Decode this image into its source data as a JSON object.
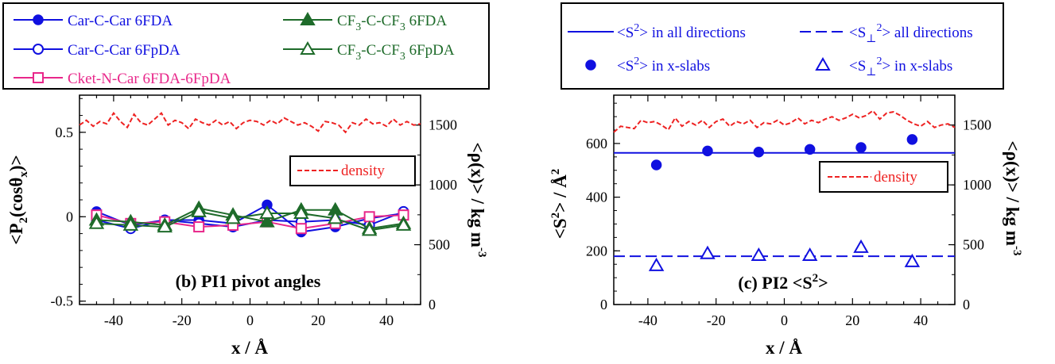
{
  "colors": {
    "blue": "#1010e0",
    "green": "#1e6b2a",
    "magenta": "#e8278a",
    "red": "#ee2222",
    "black": "#000000"
  },
  "chart_data": [
    {
      "type": "line",
      "title": "(b) PI1 pivot angles",
      "xlabel": "x / Å",
      "ylabel": "<P2(cosθx)>",
      "y2label": "<ρ(x)> / kg m-3",
      "xlim": [
        -50,
        50
      ],
      "ylim": [
        -0.52,
        0.72
      ],
      "y2lim": [
        0,
        1750
      ],
      "x_ticks": [
        -40,
        -20,
        0,
        20,
        40
      ],
      "y_ticks": [
        0.5,
        0,
        -0.5
      ],
      "y_tick_labels": [
        "0.5",
        "0",
        "-0.5"
      ],
      "y2_ticks": [
        1500,
        1000,
        500,
        0
      ],
      "x": [
        -45,
        -35,
        -25,
        -15,
        -5,
        5,
        15,
        25,
        35,
        45
      ],
      "series": [
        {
          "name": "Car-C-Car 6FDA",
          "marker": "filled-circle",
          "color": "blue",
          "values": [
            0.03,
            -0.05,
            -0.02,
            -0.02,
            -0.04,
            0.07,
            -0.09,
            -0.06,
            -0.01,
            0.02
          ]
        },
        {
          "name": "Car-C-Car 6FpDA",
          "marker": "open-circle",
          "color": "blue",
          "values": [
            -0.02,
            -0.07,
            -0.02,
            -0.04,
            -0.06,
            -0.02,
            -0.03,
            -0.02,
            -0.05,
            0.03
          ]
        },
        {
          "name": "Cket-N-Car 6FDA-6FpDA",
          "marker": "open-square",
          "color": "magenta",
          "values": [
            0.01,
            -0.04,
            -0.03,
            -0.06,
            -0.05,
            -0.03,
            -0.07,
            -0.04,
            0.0,
            0.01
          ]
        },
        {
          "name": "CF3-C-CF3 6FDA",
          "marker": "filled-triangle",
          "color": "green",
          "values": [
            -0.02,
            -0.03,
            -0.05,
            0.05,
            0.01,
            -0.03,
            0.04,
            0.04,
            -0.07,
            -0.04
          ]
        },
        {
          "name": "CF3-C-CF3 6FpDA",
          "marker": "open-triangle",
          "color": "green",
          "values": [
            -0.04,
            -0.05,
            -0.06,
            0.03,
            -0.01,
            0.02,
            0.02,
            -0.01,
            -0.08,
            -0.05
          ]
        }
      ],
      "density": {
        "name": "density",
        "x": [
          -50,
          -48,
          -46,
          -44,
          -42,
          -40,
          -38,
          -36,
          -34,
          -32,
          -30,
          -28,
          -26,
          -24,
          -22,
          -20,
          -18,
          -16,
          -14,
          -12,
          -10,
          -8,
          -6,
          -4,
          -2,
          0,
          2,
          4,
          6,
          8,
          10,
          12,
          14,
          16,
          18,
          20,
          22,
          24,
          26,
          28,
          30,
          32,
          34,
          36,
          38,
          40,
          42,
          44,
          46,
          48,
          50
        ],
        "values": [
          1500,
          1540,
          1490,
          1530,
          1510,
          1600,
          1530,
          1480,
          1590,
          1520,
          1500,
          1550,
          1600,
          1500,
          1540,
          1520,
          1470,
          1550,
          1520,
          1500,
          1540,
          1500,
          1530,
          1470,
          1520,
          1540,
          1530,
          1500,
          1540,
          1510,
          1560,
          1530,
          1500,
          1520,
          1490,
          1450,
          1530,
          1520,
          1500,
          1440,
          1520,
          1500,
          1550,
          1510,
          1520,
          1490,
          1550,
          1500,
          1530,
          1500,
          1510
        ]
      },
      "legend": [
        {
          "label": "Car-C-Car 6FDA"
        },
        {
          "label": "Car-C-Car 6FpDA"
        },
        {
          "label": "Cket-N-Car 6FDA-6FpDA"
        },
        {
          "label_pre": "CF",
          "label_sub": "3",
          "label_mid": "-C-CF",
          "label_sub2": "3",
          "label_post": " 6FDA"
        },
        {
          "label_pre": "CF",
          "label_sub": "3",
          "label_mid": "-C-CF",
          "label_sub2": "3",
          "label_post": " 6FpDA"
        },
        {
          "label": "density"
        }
      ]
    },
    {
      "type": "scatter",
      "title": "(c) PI2 <S2>",
      "xlabel": "x / Å",
      "ylabel": "<S2> / Å2",
      "y2label": "<ρ(x)> / kg m-3",
      "xlim": [
        -50,
        50
      ],
      "ylim": [
        0,
        780
      ],
      "y2lim": [
        0,
        1750
      ],
      "x_ticks": [
        -40,
        -20,
        0,
        20,
        40
      ],
      "y_ticks": [
        600,
        400,
        200,
        0
      ],
      "y2_ticks": [
        1500,
        1000,
        500,
        0
      ],
      "series": [
        {
          "name": "<S2> in all directions",
          "style": "solid-line",
          "color": "blue",
          "y": 565
        },
        {
          "name": "<S⊥2> all directions",
          "style": "dashed-line",
          "color": "blue",
          "y": 180
        },
        {
          "name": "<S2> in x-slabs",
          "marker": "filled-circle",
          "color": "blue",
          "x": [
            -37.5,
            -22.5,
            -7.5,
            7.5,
            22.5,
            37.5
          ],
          "values": [
            520,
            572,
            568,
            578,
            585,
            615
          ]
        },
        {
          "name": "<S⊥2> in x-slabs",
          "marker": "open-triangle",
          "color": "blue",
          "x": [
            -37.5,
            -22.5,
            -7.5,
            7.5,
            22.5,
            37.5
          ],
          "values": [
            145,
            190,
            183,
            183,
            213,
            160
          ]
        }
      ],
      "density": {
        "name": "density",
        "x": [
          -50,
          -48,
          -46,
          -44,
          -42,
          -40,
          -38,
          -36,
          -34,
          -32,
          -30,
          -28,
          -26,
          -24,
          -22,
          -20,
          -18,
          -16,
          -14,
          -12,
          -10,
          -8,
          -6,
          -4,
          -2,
          0,
          2,
          4,
          6,
          8,
          10,
          12,
          14,
          16,
          18,
          20,
          22,
          24,
          26,
          28,
          30,
          32,
          34,
          36,
          38,
          40,
          42,
          44,
          46,
          48,
          50
        ],
        "values": [
          1440,
          1490,
          1480,
          1470,
          1540,
          1520,
          1530,
          1500,
          1460,
          1560,
          1490,
          1530,
          1500,
          1540,
          1480,
          1530,
          1550,
          1490,
          1530,
          1510,
          1540,
          1480,
          1520,
          1510,
          1540,
          1500,
          1520,
          1560,
          1510,
          1540,
          1520,
          1550,
          1570,
          1540,
          1560,
          1590,
          1560,
          1580,
          1620,
          1550,
          1600,
          1610,
          1580,
          1540,
          1510,
          1490,
          1530,
          1480,
          1500,
          1510,
          1480
        ]
      },
      "legend": [
        {
          "pre": "<S",
          "sup": "2",
          "post": "> in all directions"
        },
        {
          "pre": "<S",
          "sub": "⊥",
          "sup": "2",
          "post": "> all directions"
        },
        {
          "pre": "<S",
          "sup": "2",
          "post": "> in x-slabs"
        },
        {
          "pre": "<S",
          "sub": "⊥",
          "sup": "2",
          "post": "> in x-slabs"
        },
        {
          "label": "density"
        }
      ]
    }
  ],
  "text": {
    "b_xlabel": "x / Å",
    "b_ylabel_pre": "<P",
    "b_ylabel_sub": "2",
    "b_ylabel_mid": "(cosθ",
    "b_ylabel_sub2": "x",
    "b_ylabel_post": ")>",
    "b_y2label_pre": "<ρ(x)> / kg m",
    "b_y2label_sup": "-3",
    "b_title": "(b) PI1 pivot angles",
    "c_xlabel": "x / Å",
    "c_ylabel_pre": "<S",
    "c_ylabel_sup": "2",
    "c_ylabel_post": "> / Å",
    "c_ylabel_sup2": "2",
    "c_y2label_pre": "<ρ(x)> / kg m",
    "c_y2label_sup": "-3",
    "c_title_pre": "(c) PI2 <S",
    "c_title_sup": "2",
    "c_title_post": ">"
  }
}
